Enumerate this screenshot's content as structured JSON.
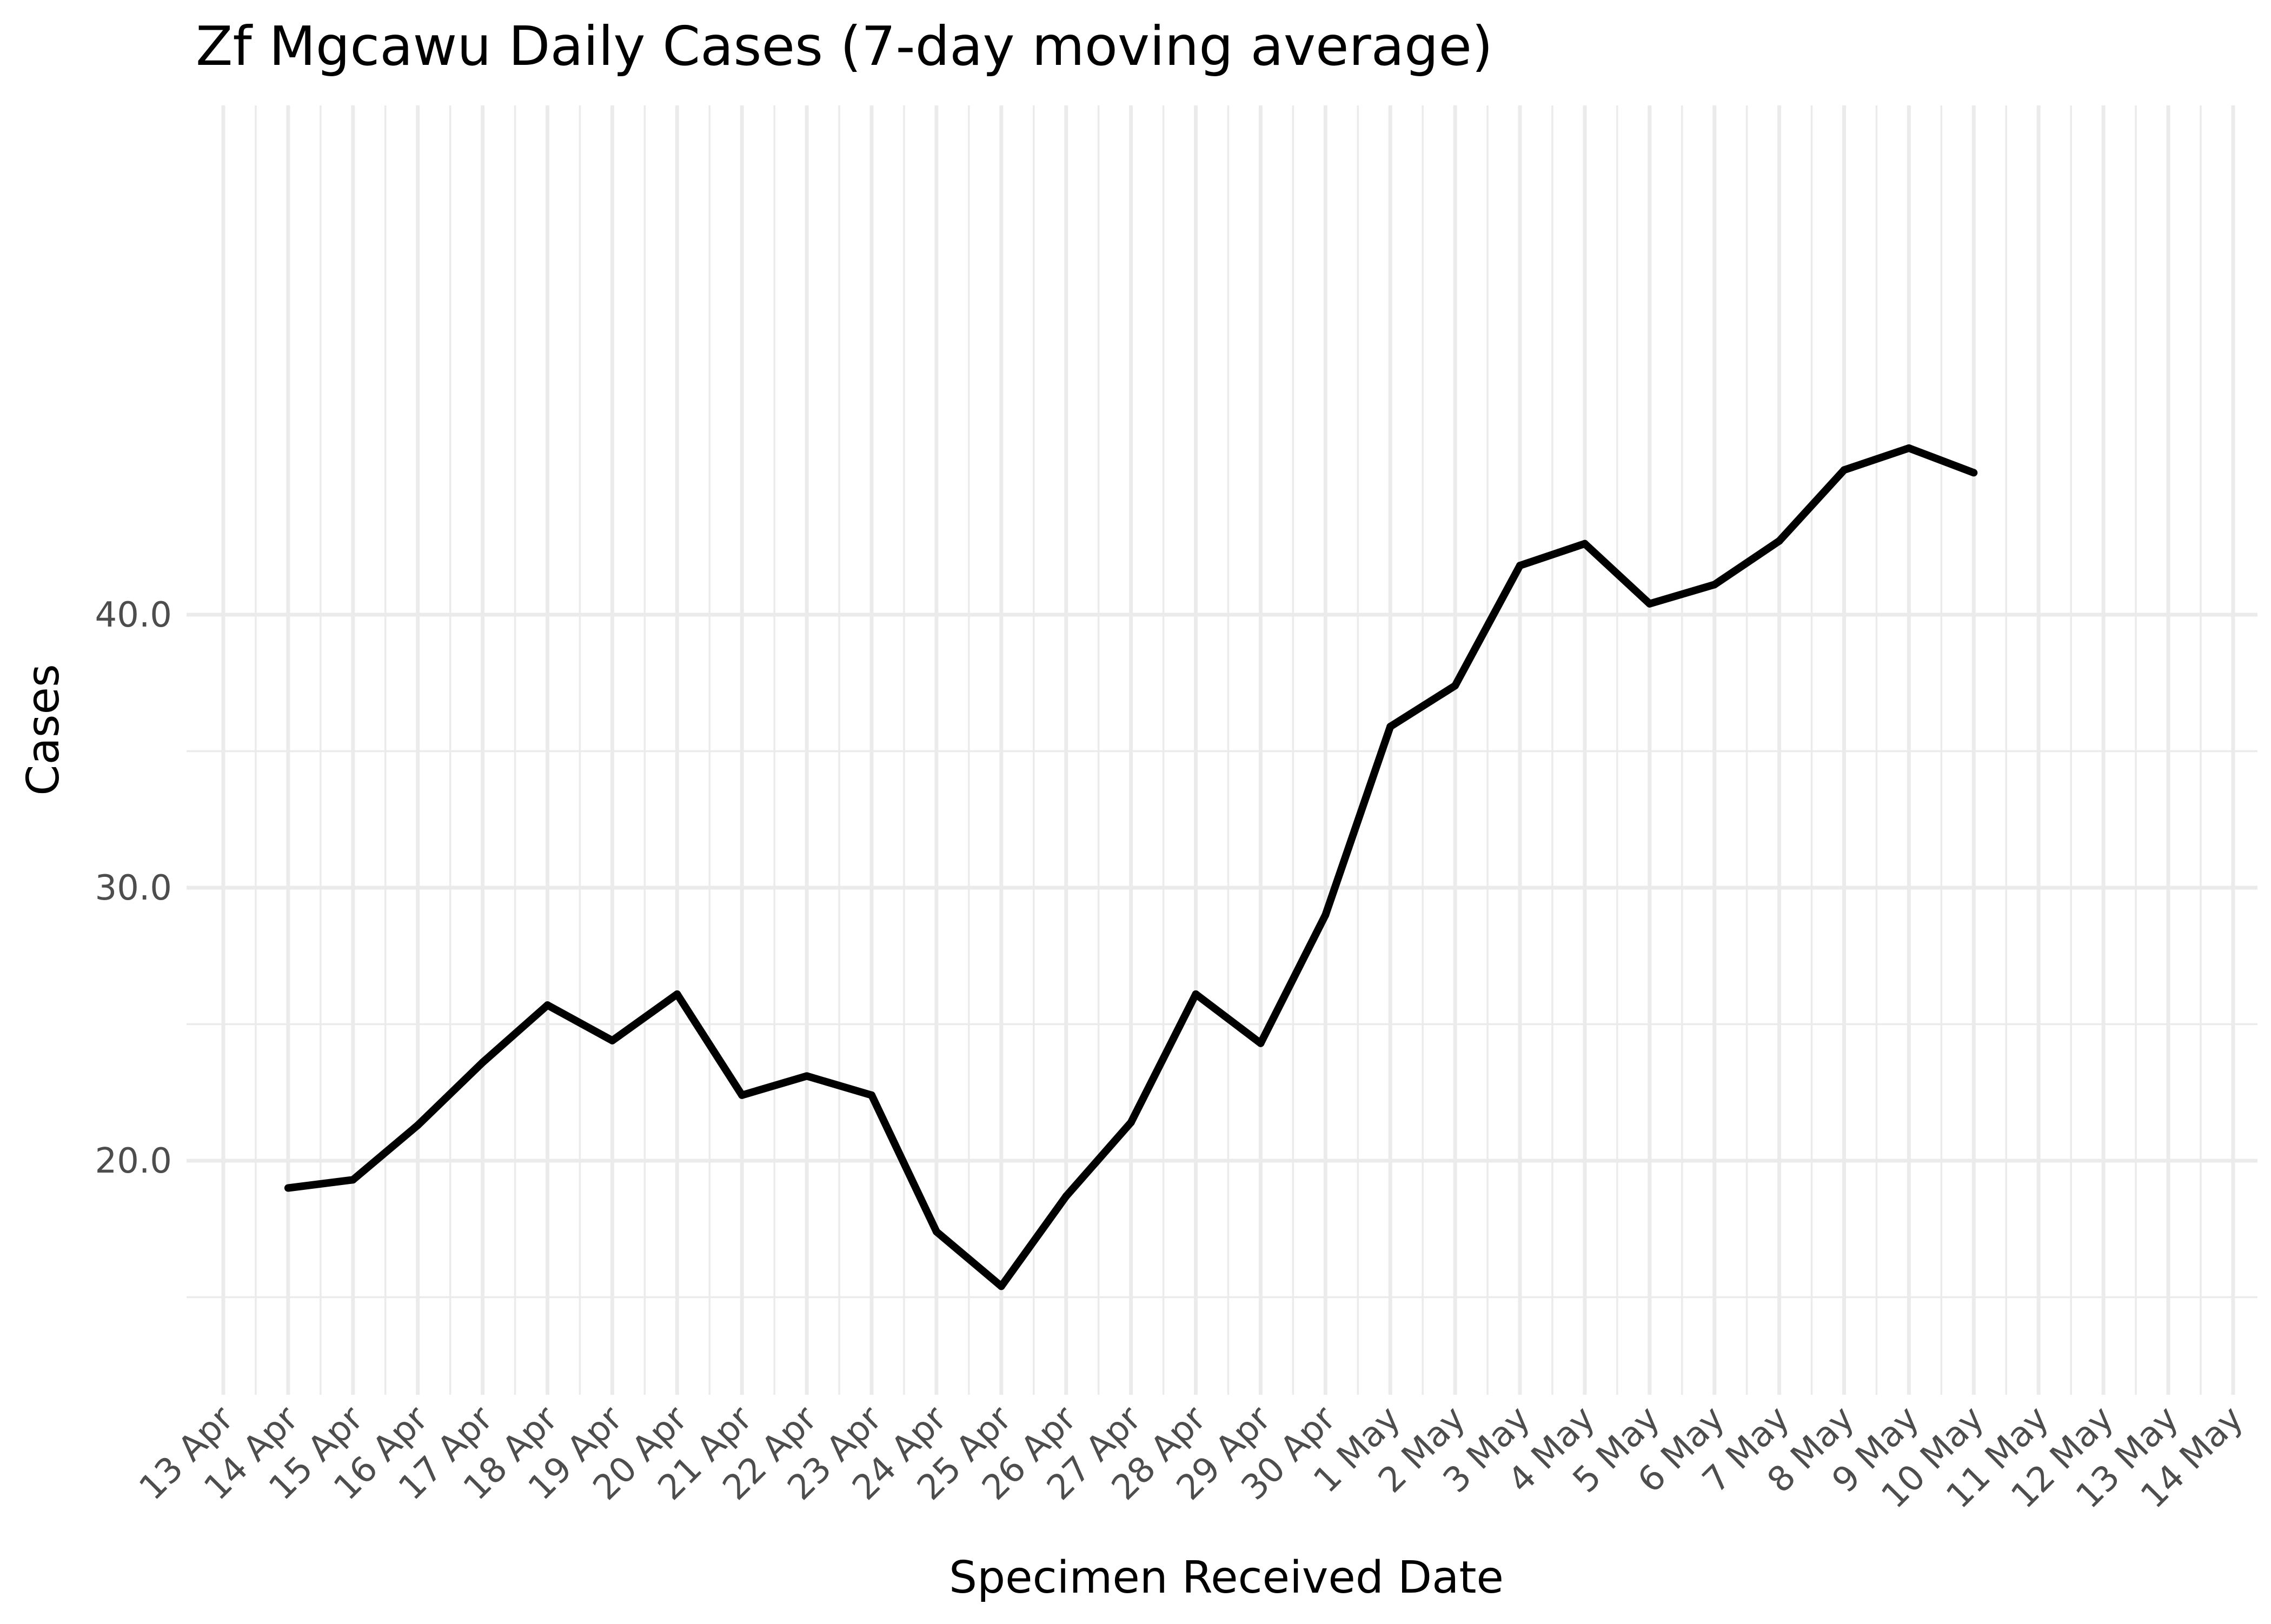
{
  "chart_data": {
    "type": "line",
    "title": "Zf Mgcawu Daily Cases (7-day moving average)",
    "xlabel": "Specimen Received Date",
    "ylabel": "Cases",
    "x_tick_labels": [
      "13 Apr",
      "14 Apr",
      "15 Apr",
      "16 Apr",
      "17 Apr",
      "18 Apr",
      "19 Apr",
      "20 Apr",
      "21 Apr",
      "22 Apr",
      "23 Apr",
      "24 Apr",
      "25 Apr",
      "26 Apr",
      "27 Apr",
      "28 Apr",
      "29 Apr",
      "30 Apr",
      "1 May",
      "2 May",
      "3 May",
      "4 May",
      "5 May",
      "6 May",
      "7 May",
      "8 May",
      "9 May",
      "10 May",
      "11 May",
      "12 May",
      "13 May",
      "14 May"
    ],
    "y_ticks": [
      20,
      30,
      40
    ],
    "y_tick_labels": [
      "20.0",
      "30.0",
      "40.0"
    ],
    "ylim": [
      15.4,
      42.5
    ],
    "grid": true,
    "series": [
      {
        "x": [
          "14 Apr",
          "15 Apr",
          "16 Apr",
          "17 Apr",
          "18 Apr",
          "19 Apr",
          "20 Apr",
          "21 Apr",
          "22 Apr",
          "23 Apr",
          "24 Apr",
          "25 Apr",
          "26 Apr",
          "27 Apr",
          "28 Apr",
          "29 Apr",
          "30 Apr",
          "1 May",
          "2 May",
          "3 May",
          "4 May",
          "5 May",
          "6 May",
          "7 May",
          "8 May",
          "9 May",
          "10 May"
        ],
        "values": [
          19.0,
          19.3,
          21.3,
          23.6,
          25.7,
          24.4,
          26.1,
          22.4,
          23.1,
          22.4,
          17.4,
          15.4,
          18.7,
          21.4,
          26.1,
          24.3,
          29.0,
          35.9,
          37.4,
          41.8,
          42.6,
          40.4,
          41.1,
          42.7,
          45.3,
          46.1,
          45.2
        ]
      }
    ],
    "line_color": "#000000"
  }
}
